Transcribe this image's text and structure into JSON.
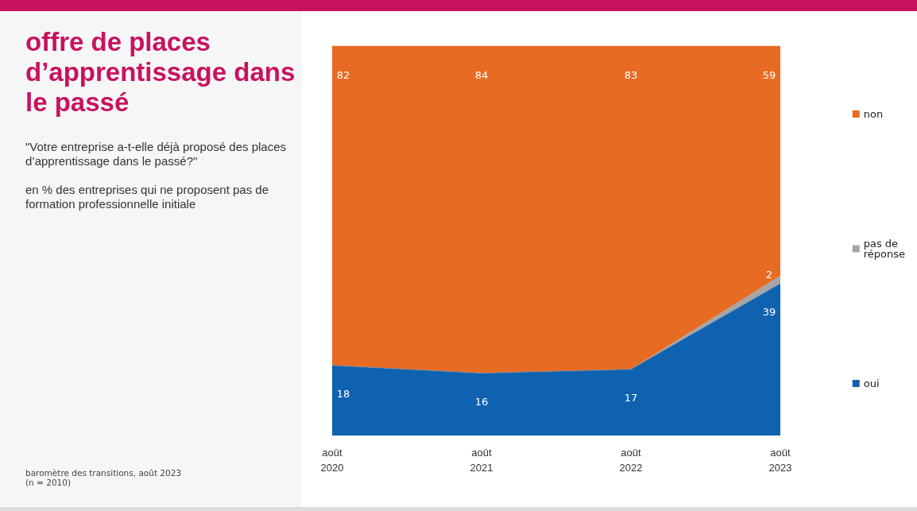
{
  "chart_data": {
    "type": "area",
    "title": "offre de places d’apprentissage dans le passé",
    "subtitle": "\"Votre entreprise a-t-elle déjà proposé des places d’apprentissage dans le passé?\"\n\nen % des entreprises qui ne proposent pas de formation professionnelle initiale",
    "annotations": [
      "baromètre des transitions, août 2023",
      "(n = 2010)"
    ],
    "categories": [
      "août\n2020",
      "août\n2021",
      "août\n2022",
      "août\n2023"
    ],
    "stacked": true,
    "tick_labels": "x",
    "grid": false,
    "legend": "right",
    "marker": "none",
    "series": [
      {
        "name": "oui",
        "color": "#0f62b0",
        "values": [
          18,
          16,
          17,
          39
        ],
        "value_labels": [
          "18",
          "16",
          "17",
          "39"
        ]
      },
      {
        "name": "pas de réponse",
        "color": "#a6a6a6",
        "values": [
          0,
          0,
          0,
          2
        ],
        "value_labels": [
          null,
          null,
          null,
          "2"
        ]
      },
      {
        "name": "non",
        "color": "#e86b23",
        "values": [
          82,
          84,
          83,
          59
        ],
        "value_labels": [
          "82",
          "84",
          "83",
          "59"
        ]
      }
    ]
  }
}
